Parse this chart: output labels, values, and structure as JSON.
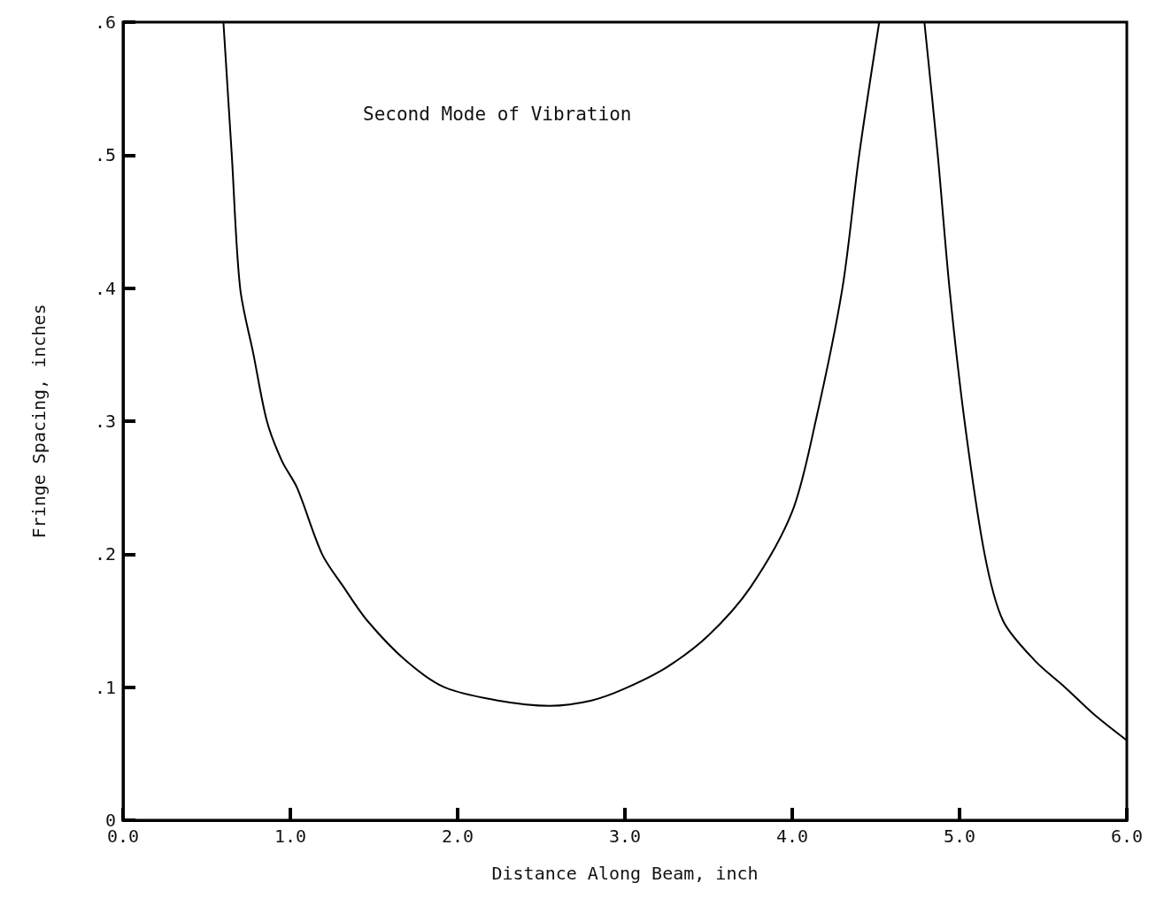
{
  "chart_data": {
    "type": "line",
    "xlabel": "Distance Along Beam, inch",
    "ylabel": "Fringe Spacing, inches",
    "annotations": [
      "Second Mode of Vibration"
    ],
    "xlim": [
      0,
      6
    ],
    "ylim": [
      0,
      0.6
    ],
    "xticks": [
      {
        "value": 0,
        "label": "0.0"
      },
      {
        "value": 1,
        "label": "1.0"
      },
      {
        "value": 2,
        "label": "2.0"
      },
      {
        "value": 3,
        "label": "3.0"
      },
      {
        "value": 4,
        "label": "4.0"
      },
      {
        "value": 5,
        "label": "5.0"
      },
      {
        "value": 6,
        "label": "6.0"
      }
    ],
    "yticks": [
      {
        "value": 0,
        "label": "0"
      },
      {
        "value": 0.1,
        "label": ".1"
      },
      {
        "value": 0.2,
        "label": ".2"
      },
      {
        "value": 0.3,
        "label": ".3"
      },
      {
        "value": 0.4,
        "label": ".4"
      },
      {
        "value": 0.5,
        "label": ".5"
      },
      {
        "value": 0.6,
        "label": ".6"
      }
    ],
    "grid": false,
    "marker": "none",
    "line_style": "solid",
    "series": [
      {
        "color": "#000000",
        "x": [
          0.6,
          0.65,
          0.7,
          0.78,
          0.86,
          0.95,
          1.04,
          1.19,
          1.32,
          1.46,
          1.69,
          1.92,
          2.24,
          2.55,
          2.8,
          3.0,
          3.25,
          3.5,
          3.75,
          4.0,
          4.14,
          4.3,
          4.4,
          4.52
        ],
        "values": [
          0.6,
          0.5,
          0.4,
          0.35,
          0.3,
          0.27,
          0.25,
          0.2,
          0.175,
          0.15,
          0.12,
          0.1,
          0.09,
          0.086,
          0.09,
          0.099,
          0.115,
          0.139,
          0.175,
          0.232,
          0.3,
          0.4,
          0.5,
          0.6
        ]
      },
      {
        "color": "#000000",
        "x": [
          4.79,
          4.87,
          4.94,
          5.03,
          5.15,
          5.26,
          5.45,
          5.63,
          5.8,
          6.0
        ],
        "values": [
          0.6,
          0.5,
          0.4,
          0.3,
          0.2,
          0.15,
          0.12,
          0.1,
          0.08,
          0.06
        ]
      }
    ]
  }
}
